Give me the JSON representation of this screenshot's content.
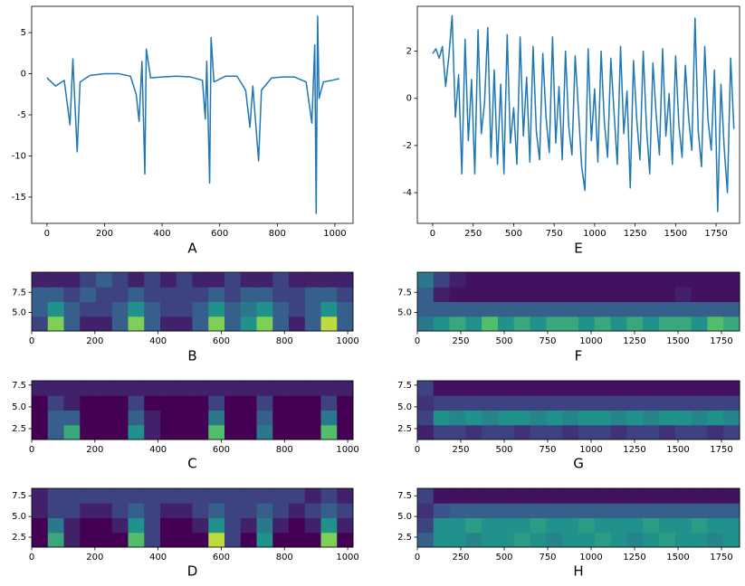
{
  "chart_data": [
    {
      "type": "line",
      "xlabel": "A",
      "color": "#1f77b4",
      "x": [
        0,
        30,
        60,
        80,
        90,
        105,
        115,
        150,
        200,
        250,
        290,
        310,
        320,
        330,
        340,
        345,
        360,
        400,
        450,
        500,
        540,
        550,
        555,
        565,
        570,
        580,
        620,
        660,
        690,
        705,
        715,
        735,
        745,
        780,
        820,
        860,
        900,
        920,
        930,
        935,
        940,
        945,
        960,
        990,
        1015
      ],
      "values": [
        -0.5,
        -1.5,
        -0.8,
        -6.2,
        1.8,
        -9.5,
        -1,
        -0.2,
        0,
        0,
        -0.3,
        -2.5,
        -5.8,
        1.5,
        -12.2,
        3,
        -0.5,
        -0.4,
        -0.3,
        -0.4,
        -0.8,
        -5.5,
        1.5,
        -13.3,
        4.4,
        -1,
        -0.3,
        -0.3,
        -2,
        -6.5,
        -1.5,
        -10.6,
        -2,
        -0.5,
        -0.4,
        -0.4,
        -1,
        -6,
        3.5,
        -17,
        7,
        -3,
        -1,
        -0.8,
        -0.6
      ],
      "xlim": [
        -53,
        1063
      ],
      "ylim": [
        -18.2,
        8.2
      ],
      "xticks": [
        0,
        200,
        400,
        600,
        800,
        1000
      ],
      "yticks": [
        -15,
        -10,
        -5,
        0,
        5
      ]
    },
    {
      "type": "heatmap",
      "xlabel": "B",
      "colormap": "viridis",
      "xlim": [
        0,
        1017
      ],
      "ylim": [
        2.7,
        10.0
      ],
      "xticks": [
        0,
        200,
        400,
        600,
        800,
        1000
      ],
      "yticks": [
        {
          "value": 5,
          "label": "5.0"
        },
        7.5
      ],
      "z": [
        [
          0.2,
          0.8,
          0.3,
          0.1,
          0.1,
          0.3,
          0.8,
          0.3,
          0.1,
          0.1,
          0.3,
          0.8,
          0.3,
          0.5,
          0.8,
          0.3,
          0.1,
          0.3,
          0.9,
          0.3
        ],
        [
          0.3,
          0.5,
          0.3,
          0.2,
          0.2,
          0.3,
          0.5,
          0.3,
          0.2,
          0.2,
          0.3,
          0.5,
          0.3,
          0.4,
          0.5,
          0.3,
          0.2,
          0.3,
          0.5,
          0.3
        ],
        [
          0.3,
          0.3,
          0.2,
          0.3,
          0.2,
          0.2,
          0.3,
          0.2,
          0.2,
          0.2,
          0.2,
          0.3,
          0.2,
          0.3,
          0.3,
          0.2,
          0.2,
          0.3,
          0.3,
          0.2
        ],
        [
          0.1,
          0.1,
          0.1,
          0.2,
          0.3,
          0.2,
          0.1,
          0.2,
          0.1,
          0.2,
          0.1,
          0.1,
          0.2,
          0.1,
          0.1,
          0.2,
          0.1,
          0.1,
          0.1,
          0.1
        ]
      ]
    },
    {
      "type": "heatmap",
      "xlabel": "C",
      "colormap": "viridis",
      "xlim": [
        0,
        1017
      ],
      "ylim": [
        1.25,
        8.0
      ],
      "xticks": [
        0,
        200,
        400,
        600,
        800,
        1000
      ],
      "yticks": [
        2.5,
        {
          "value": 5,
          "label": "5.0"
        },
        7.5
      ],
      "z": [
        [
          0,
          0.3,
          0.6,
          0,
          0,
          0,
          0.5,
          0.1,
          0,
          0,
          0,
          0.7,
          0,
          0,
          0.4,
          0,
          0,
          0,
          0.7,
          0
        ],
        [
          0,
          0.3,
          0.3,
          0,
          0,
          0,
          0.3,
          0.1,
          0,
          0,
          0,
          0.4,
          0,
          0,
          0.3,
          0,
          0,
          0,
          0.4,
          0
        ],
        [
          0,
          0.2,
          0.1,
          0,
          0,
          0,
          0.2,
          0,
          0,
          0,
          0,
          0.2,
          0,
          0,
          0.2,
          0,
          0,
          0,
          0.2,
          0
        ],
        [
          0.1,
          0.1,
          0.1,
          0.1,
          0.1,
          0.1,
          0.1,
          0.1,
          0.1,
          0.1,
          0.1,
          0.1,
          0.1,
          0.1,
          0.1,
          0.1,
          0.1,
          0.1,
          0.1,
          0.1
        ]
      ]
    },
    {
      "type": "heatmap",
      "xlabel": "D",
      "colormap": "viridis",
      "xlim": [
        0,
        1017
      ],
      "ylim": [
        1.3,
        8.4
      ],
      "xticks": [
        0,
        200,
        400,
        600,
        800,
        1000
      ],
      "yticks": [
        2.5,
        {
          "value": 5,
          "label": "5.0"
        },
        7.5
      ],
      "z": [
        [
          0,
          0.6,
          0.1,
          0,
          0,
          0,
          0.7,
          0.2,
          0,
          0,
          0,
          0.9,
          0.2,
          0,
          0.5,
          0,
          0,
          0,
          0.8,
          0
        ],
        [
          0,
          0.4,
          0.1,
          0,
          0,
          0.1,
          0.5,
          0.2,
          0,
          0,
          0.1,
          0.5,
          0.2,
          0.1,
          0.4,
          0.1,
          0,
          0.1,
          0.5,
          0.1
        ],
        [
          0.1,
          0.2,
          0.2,
          0.1,
          0.1,
          0.2,
          0.3,
          0.2,
          0.1,
          0.1,
          0.2,
          0.3,
          0.2,
          0.2,
          0.3,
          0.2,
          0.1,
          0.2,
          0.3,
          0.2
        ],
        [
          0.1,
          0.2,
          0.2,
          0.2,
          0.2,
          0.2,
          0.2,
          0.2,
          0.2,
          0.2,
          0.2,
          0.2,
          0.2,
          0.2,
          0.2,
          0.2,
          0.2,
          0.1,
          0.2,
          0.1
        ]
      ]
    },
    {
      "type": "line",
      "xlabel": "E",
      "color": "#1f77b4",
      "x": [
        0,
        20,
        40,
        60,
        80,
        100,
        120,
        140,
        160,
        180,
        200,
        220,
        240,
        260,
        280,
        300,
        320,
        340,
        360,
        380,
        400,
        420,
        440,
        460,
        480,
        500,
        520,
        540,
        560,
        580,
        600,
        620,
        640,
        660,
        680,
        700,
        720,
        740,
        760,
        780,
        800,
        820,
        840,
        860,
        880,
        900,
        920,
        940,
        960,
        980,
        1000,
        1020,
        1040,
        1060,
        1080,
        1100,
        1120,
        1140,
        1160,
        1180,
        1200,
        1220,
        1240,
        1260,
        1280,
        1300,
        1320,
        1340,
        1360,
        1380,
        1400,
        1420,
        1440,
        1460,
        1480,
        1500,
        1520,
        1540,
        1560,
        1580,
        1600,
        1620,
        1640,
        1660,
        1680,
        1700,
        1720,
        1740,
        1760,
        1780,
        1800,
        1820,
        1840,
        1860
      ],
      "values": [
        1.9,
        2.1,
        1.7,
        2.2,
        0.5,
        1.8,
        3.5,
        -0.8,
        1.0,
        -3.2,
        2.5,
        -1.8,
        0.8,
        -3.2,
        2.9,
        -1.5,
        -0.2,
        3.0,
        -2.5,
        1.2,
        -2.8,
        0.6,
        -3.2,
        2.7,
        -1.9,
        -0.4,
        -2.8,
        2.6,
        -1.6,
        0.9,
        -2.7,
        2.2,
        -1.4,
        -2.6,
        1.9,
        -0.8,
        -2.3,
        2.6,
        -1.9,
        0.5,
        -2.6,
        2.0,
        -1.2,
        -2.4,
        1.8,
        -0.5,
        -2.9,
        -3.9,
        2.1,
        -1.8,
        0.4,
        -2.7,
        2.0,
        -1.0,
        -2.5,
        1.7,
        -0.6,
        -2.8,
        2.2,
        -1.5,
        0.3,
        -3.8,
        1.6,
        -0.9,
        -2.6,
        2.0,
        -1.2,
        -3.2,
        1.5,
        -0.7,
        -2.4,
        2.1,
        -1.6,
        0.2,
        -2.8,
        1.8,
        -1.1,
        -2.5,
        1.4,
        -0.8,
        -2.2,
        3.4,
        -1.4,
        -2.9,
        2.2,
        -0.9,
        -2.2,
        1.2,
        -4.8,
        0.6,
        -2.1,
        -4.0,
        1.7,
        -1.3
      ],
      "xlim": [
        -95,
        1895
      ],
      "ylim": [
        -5.3,
        3.9
      ],
      "xticks": [
        0,
        250,
        500,
        750,
        1000,
        1250,
        1500,
        1750
      ],
      "yticks": [
        -4,
        -2,
        0,
        2
      ]
    },
    {
      "type": "heatmap",
      "xlabel": "F",
      "colormap": "viridis",
      "xlim": [
        0,
        1854
      ],
      "ylim": [
        2.7,
        10.0
      ],
      "xticks": [
        0,
        250,
        500,
        750,
        1000,
        1250,
        1500,
        1750
      ],
      "yticks": [
        {
          "value": 5,
          "label": "5.0"
        },
        7.5
      ],
      "z": [
        [
          0.4,
          0.5,
          0.6,
          0.5,
          0.7,
          0.5,
          0.6,
          0.5,
          0.6,
          0.6,
          0.5,
          0.6,
          0.5,
          0.6,
          0.5,
          0.6,
          0.6,
          0.5,
          0.7,
          0.6
        ],
        [
          0.3,
          0.3,
          0.3,
          0.3,
          0.3,
          0.3,
          0.3,
          0.3,
          0.3,
          0.3,
          0.3,
          0.3,
          0.3,
          0.3,
          0.3,
          0.3,
          0.3,
          0.3,
          0.3,
          0.3
        ],
        [
          0.3,
          0.1,
          0.05,
          0.05,
          0.05,
          0.05,
          0.05,
          0.05,
          0.05,
          0.05,
          0.05,
          0.05,
          0.05,
          0.05,
          0.05,
          0.05,
          0.1,
          0.05,
          0.05,
          0.05
        ],
        [
          0.4,
          0.2,
          0.1,
          0.05,
          0.05,
          0.05,
          0.05,
          0.05,
          0.05,
          0.05,
          0.05,
          0.05,
          0.05,
          0.05,
          0.05,
          0.05,
          0.05,
          0.05,
          0.05,
          0.05
        ]
      ]
    },
    {
      "type": "heatmap",
      "xlabel": "G",
      "colormap": "viridis",
      "xlim": [
        0,
        1854
      ],
      "ylim": [
        1.25,
        8.0
      ],
      "xticks": [
        0,
        250,
        500,
        750,
        1000,
        1250,
        1500,
        1750
      ],
      "yticks": [
        2.5,
        {
          "value": 5,
          "label": "5.0"
        },
        7.5
      ],
      "z": [
        [
          0.1,
          0.2,
          0.2,
          0.15,
          0.2,
          0.2,
          0.15,
          0.2,
          0.2,
          0.15,
          0.2,
          0.2,
          0.15,
          0.2,
          0.2,
          0.15,
          0.2,
          0.2,
          0.15,
          0.2
        ],
        [
          0.2,
          0.5,
          0.45,
          0.5,
          0.45,
          0.5,
          0.5,
          0.45,
          0.5,
          0.45,
          0.5,
          0.5,
          0.45,
          0.5,
          0.45,
          0.5,
          0.5,
          0.45,
          0.5,
          0.45
        ],
        [
          0.15,
          0.2,
          0.2,
          0.2,
          0.2,
          0.2,
          0.2,
          0.2,
          0.2,
          0.2,
          0.2,
          0.2,
          0.2,
          0.2,
          0.2,
          0.2,
          0.2,
          0.2,
          0.2,
          0.2
        ],
        [
          0.2,
          0.05,
          0.05,
          0.05,
          0.05,
          0.05,
          0.05,
          0.05,
          0.05,
          0.05,
          0.05,
          0.05,
          0.05,
          0.05,
          0.05,
          0.05,
          0.05,
          0.05,
          0.05,
          0.05
        ]
      ]
    },
    {
      "type": "heatmap",
      "xlabel": "H",
      "colormap": "viridis",
      "xlim": [
        0,
        1854
      ],
      "ylim": [
        1.3,
        8.4
      ],
      "xticks": [
        0,
        250,
        500,
        750,
        1000,
        1250,
        1500,
        1750
      ],
      "yticks": [
        2.5,
        {
          "value": 5,
          "label": "5.0"
        },
        7.5
      ],
      "z": [
        [
          0.3,
          0.5,
          0.5,
          0.45,
          0.5,
          0.5,
          0.55,
          0.5,
          0.45,
          0.5,
          0.5,
          0.55,
          0.5,
          0.45,
          0.5,
          0.55,
          0.5,
          0.5,
          0.45,
          0.5
        ],
        [
          0.2,
          0.5,
          0.5,
          0.55,
          0.5,
          0.5,
          0.5,
          0.55,
          0.5,
          0.5,
          0.55,
          0.5,
          0.5,
          0.5,
          0.55,
          0.5,
          0.5,
          0.55,
          0.5,
          0.5
        ],
        [
          0.15,
          0.25,
          0.3,
          0.3,
          0.3,
          0.3,
          0.3,
          0.3,
          0.3,
          0.3,
          0.3,
          0.3,
          0.3,
          0.3,
          0.3,
          0.3,
          0.3,
          0.3,
          0.3,
          0.3
        ],
        [
          0.2,
          0.05,
          0.05,
          0.05,
          0.05,
          0.05,
          0.05,
          0.05,
          0.05,
          0.05,
          0.05,
          0.05,
          0.05,
          0.05,
          0.05,
          0.05,
          0.05,
          0.05,
          0.05,
          0.05
        ]
      ]
    }
  ]
}
